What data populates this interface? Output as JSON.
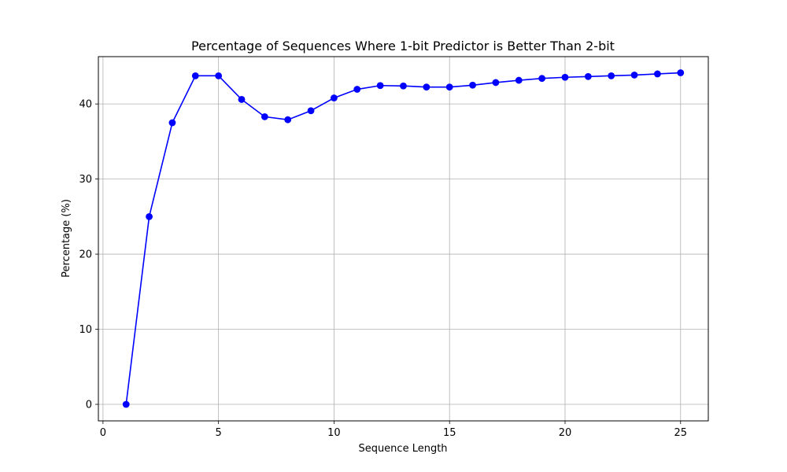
{
  "chart_data": {
    "type": "line",
    "title": "Percentage of Sequences Where 1-bit Predictor is Better Than 2-bit",
    "xlabel": "Sequence Length",
    "ylabel": "Percentage (%)",
    "xlim": [
      -0.2,
      26.2
    ],
    "ylim": [
      -2.2,
      46.3
    ],
    "xticks": [
      0,
      5,
      10,
      15,
      20,
      25
    ],
    "yticks": [
      0,
      10,
      20,
      30,
      40
    ],
    "grid": true,
    "series": [
      {
        "x": [
          1,
          2,
          3,
          4,
          5,
          6,
          7,
          8,
          9,
          10,
          11,
          12,
          13,
          14,
          15,
          16,
          17,
          18,
          19,
          20,
          21,
          22,
          23,
          24,
          25
        ],
        "values": [
          0.0,
          25.0,
          37.5,
          43.75,
          43.75,
          40.6,
          38.3,
          37.9,
          39.1,
          40.8,
          41.95,
          42.45,
          42.4,
          42.25,
          42.25,
          42.5,
          42.85,
          43.15,
          43.4,
          43.55,
          43.65,
          43.75,
          43.85,
          44.0,
          44.15
        ],
        "color": "#0000ff",
        "marker": "circle"
      }
    ],
    "colors": {
      "line": "#0000ff",
      "grid": "#b0b0b0",
      "axes": "#000000",
      "background": "#ffffff"
    }
  }
}
